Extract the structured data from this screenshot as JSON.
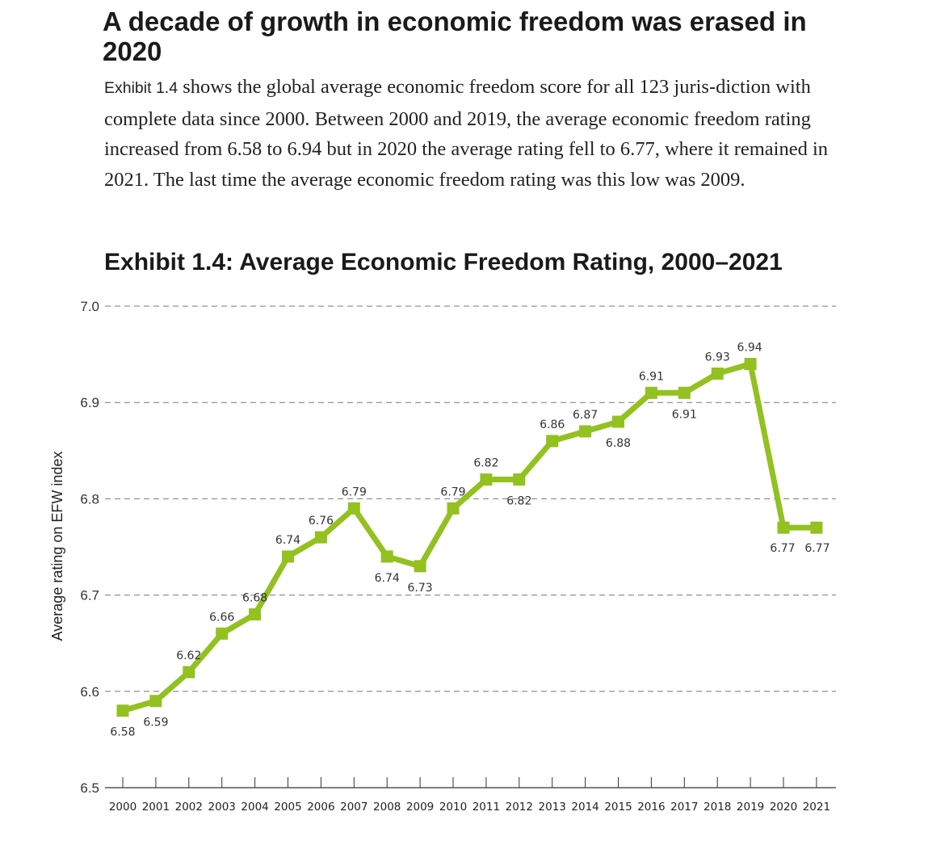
{
  "headline": "A decade of growth in economic freedom was erased in 2020",
  "paragraph": {
    "lead": "Exhibit 1.4",
    "text": " shows the global average economic freedom score for all 123 juris-diction with complete data since 2000. Between 2000 and 2019, the average economic freedom rating increased from 6.58 to 6.94 but in 2020 the average rating fell to 6.77, where it remained in 2021. The last time the average economic freedom rating was this low was 2009."
  },
  "colors": {
    "line": "#93c11f",
    "grid": "#777777",
    "text": "#222222"
  },
  "chart_data": {
    "type": "line",
    "title": "Exhibit 1.4: Average Economic Freedom Rating, 2000–2021",
    "ylabel": "Average rating on EFW index",
    "xlabel": "",
    "ylim": [
      6.5,
      7.0
    ],
    "yticks": [
      "6.5",
      "6.6",
      "6.7",
      "6.8",
      "6.9",
      "7.0"
    ],
    "grid": "horizontal dashed",
    "legend": "none",
    "categories": [
      "2000",
      "2001",
      "2002",
      "2003",
      "2004",
      "2005",
      "2006",
      "2007",
      "2008",
      "2009",
      "2010",
      "2011",
      "2012",
      "2013",
      "2014",
      "2015",
      "2016",
      "2017",
      "2018",
      "2019",
      "2020",
      "2021"
    ],
    "values": [
      6.58,
      6.59,
      6.62,
      6.66,
      6.68,
      6.74,
      6.76,
      6.79,
      6.74,
      6.73,
      6.79,
      6.82,
      6.82,
      6.86,
      6.87,
      6.88,
      6.91,
      6.91,
      6.93,
      6.94,
      6.77,
      6.77
    ],
    "data_labels": [
      "6.58",
      "6.59",
      "6.62",
      "6.66",
      "6.68",
      "6.74",
      "6.76",
      "6.79",
      "6.74",
      "6.73",
      "6.79",
      "6.82",
      "6.82",
      "6.86",
      "6.87",
      "6.88",
      "6.91",
      "6.91",
      "6.93",
      "6.94",
      "6.77",
      "6.77"
    ]
  }
}
